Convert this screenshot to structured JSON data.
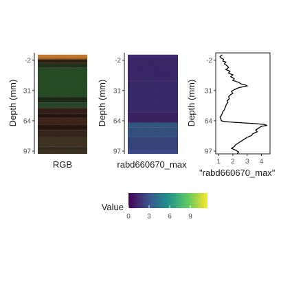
{
  "chart_data": [
    {
      "type": "image",
      "panel": "rgb",
      "ylabel": "Depth (mm)",
      "xlabel": "RGB",
      "y_ticks": [
        -2,
        31,
        64,
        97
      ],
      "ylim": [
        -10,
        100
      ],
      "image_depth_range": [
        -8,
        100
      ],
      "bands": [
        {
          "from": -8,
          "to": -3,
          "color": "#c3772e"
        },
        {
          "from": -3,
          "to": 1,
          "color": "#3a2516"
        },
        {
          "from": 1,
          "to": 6,
          "color": "#2b3a22"
        },
        {
          "from": 6,
          "to": 38,
          "color": "#2e5a2c"
        },
        {
          "from": 38,
          "to": 44,
          "color": "#20301c"
        },
        {
          "from": 44,
          "to": 50,
          "color": "#2f5130"
        },
        {
          "from": 50,
          "to": 56,
          "color": "#3c251c"
        },
        {
          "from": 56,
          "to": 61,
          "color": "#2a1a14"
        },
        {
          "from": 61,
          "to": 68,
          "color": "#4a2a1e"
        },
        {
          "from": 68,
          "to": 74,
          "color": "#2d1c14"
        },
        {
          "from": 74,
          "to": 82,
          "color": "#3f2c22"
        },
        {
          "from": 82,
          "to": 92,
          "color": "#4a3b26"
        },
        {
          "from": 92,
          "to": 100,
          "color": "#3c3324"
        }
      ]
    },
    {
      "type": "heatmap",
      "panel": "index_map",
      "ylabel": "Depth (mm)",
      "xlabel": "rabd660670_max",
      "y_ticks": [
        -2,
        31,
        64,
        97
      ],
      "ylim": [
        -10,
        100
      ],
      "image_depth_range": [
        -8,
        100
      ],
      "bands": [
        {
          "from": -8,
          "to": 20,
          "value": 1.5
        },
        {
          "from": 20,
          "to": 55,
          "value": 1.6
        },
        {
          "from": 55,
          "to": 66,
          "value": 1.3
        },
        {
          "from": 66,
          "to": 71,
          "value": 3.5
        },
        {
          "from": 71,
          "to": 82,
          "value": 3.2
        },
        {
          "from": 82,
          "to": 100,
          "value": 2.6
        }
      ]
    },
    {
      "type": "line",
      "panel": "profile",
      "ylabel": "Depth (mm)",
      "xlabel": "\"rabd660670_max\"",
      "y_ticks": [
        -2,
        31,
        64,
        97
      ],
      "x_ticks": [
        1,
        2,
        3,
        4
      ],
      "xlim": [
        0.8,
        4.6
      ],
      "ylim": [
        -10,
        100
      ],
      "points": [
        [
          1.25,
          -8
        ],
        [
          1.1,
          -6
        ],
        [
          1.2,
          -4
        ],
        [
          1.35,
          -3
        ],
        [
          1.3,
          -1
        ],
        [
          1.5,
          0
        ],
        [
          1.4,
          2
        ],
        [
          1.6,
          4
        ],
        [
          1.7,
          6
        ],
        [
          1.5,
          8
        ],
        [
          1.8,
          10
        ],
        [
          1.7,
          12
        ],
        [
          2.0,
          14
        ],
        [
          1.85,
          16
        ],
        [
          2.1,
          18
        ],
        [
          2.0,
          20
        ],
        [
          2.4,
          22
        ],
        [
          2.6,
          24
        ],
        [
          2.9,
          25
        ],
        [
          3.0,
          26
        ],
        [
          2.7,
          27
        ],
        [
          2.4,
          28
        ],
        [
          2.1,
          30
        ],
        [
          1.9,
          32
        ],
        [
          2.0,
          34
        ],
        [
          1.8,
          36
        ],
        [
          1.7,
          38
        ],
        [
          1.75,
          40
        ],
        [
          1.6,
          42
        ],
        [
          1.65,
          44
        ],
        [
          1.55,
          46
        ],
        [
          1.5,
          48
        ],
        [
          1.45,
          50
        ],
        [
          1.4,
          52
        ],
        [
          1.3,
          54
        ],
        [
          1.25,
          56
        ],
        [
          1.2,
          58
        ],
        [
          1.1,
          60
        ],
        [
          1.15,
          62
        ],
        [
          1.2,
          64
        ],
        [
          1.5,
          65
        ],
        [
          2.5,
          66
        ],
        [
          3.5,
          67
        ],
        [
          4.2,
          68
        ],
        [
          4.4,
          69
        ],
        [
          4.0,
          70
        ],
        [
          3.8,
          72
        ],
        [
          3.6,
          74
        ],
        [
          3.7,
          76
        ],
        [
          3.4,
          78
        ],
        [
          3.3,
          80
        ],
        [
          3.0,
          82
        ],
        [
          2.8,
          84
        ],
        [
          2.6,
          86
        ],
        [
          2.4,
          88
        ],
        [
          2.2,
          90
        ],
        [
          2.1,
          92
        ],
        [
          1.9,
          94
        ],
        [
          2.2,
          96
        ],
        [
          2.4,
          98
        ],
        [
          2.3,
          100
        ]
      ]
    }
  ],
  "colorbar": {
    "title": "Value",
    "ticks": [
      "0",
      "3",
      "6",
      "9"
    ],
    "tick_values": [
      0,
      3,
      6,
      9
    ],
    "range": [
      0,
      11.5
    ],
    "colormap": [
      "#440154",
      "#3b528b",
      "#21908c",
      "#5dc963",
      "#fde725"
    ]
  }
}
